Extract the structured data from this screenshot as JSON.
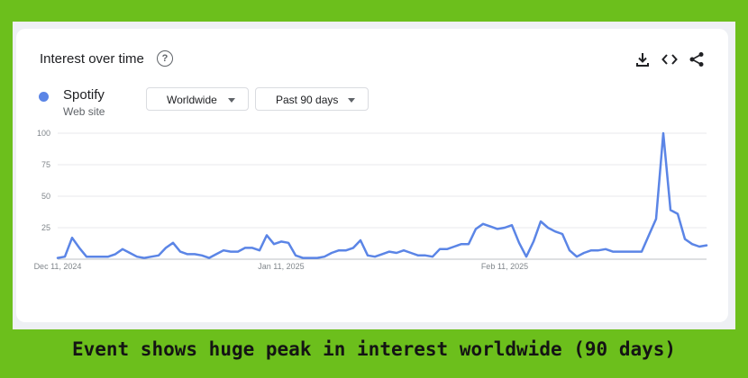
{
  "header": {
    "title": "Interest over time"
  },
  "icons": {
    "help": "help-circle-icon",
    "download": "download-icon",
    "embed": "embed-code-icon",
    "share": "share-icon"
  },
  "series": {
    "name": "Spotify",
    "subtitle": "Web site",
    "color": "#5b85e6"
  },
  "filters": {
    "region": "Worldwide",
    "period": "Past 90 days"
  },
  "caption": "Event shows huge peak in interest worldwide (90 days)",
  "chart_data": {
    "type": "line",
    "ylim": [
      0,
      100
    ],
    "yticks": [
      25,
      50,
      75,
      100
    ],
    "x_tick_labels": [
      {
        "label": "Dec 11, 2024",
        "index": 0
      },
      {
        "label": "Jan 11, 2025",
        "index": 31
      },
      {
        "label": "Feb 11, 2025",
        "index": 62
      }
    ],
    "grid": true,
    "series": [
      {
        "color": "#5b85e6",
        "values": [
          1,
          2,
          17,
          9,
          2,
          2,
          2,
          2,
          4,
          8,
          5,
          2,
          1,
          2,
          3,
          9,
          13,
          6,
          4,
          4,
          3,
          1,
          4,
          7,
          6,
          6,
          9,
          9,
          7,
          19,
          12,
          14,
          13,
          3,
          1,
          1,
          1,
          2,
          5,
          7,
          7,
          9,
          15,
          3,
          2,
          4,
          6,
          5,
          7,
          5,
          3,
          3,
          2,
          8,
          8,
          10,
          12,
          12,
          24,
          28,
          26,
          24,
          25,
          27,
          13,
          2,
          14,
          30,
          25,
          22,
          20,
          7,
          2,
          5,
          7,
          7,
          8,
          6,
          6,
          6,
          6,
          6,
          19,
          32,
          100,
          39,
          36,
          16,
          12,
          10,
          11
        ]
      }
    ]
  }
}
